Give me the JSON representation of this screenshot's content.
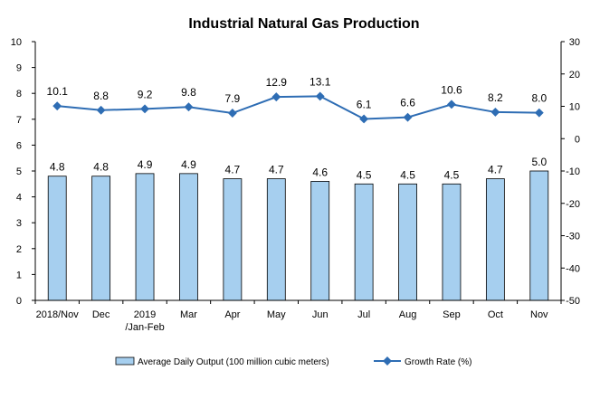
{
  "chart_data": {
    "type": "bar",
    "title": "Industrial Natural Gas Production",
    "categories": [
      "2018/Nov",
      "Dec",
      "2019\n/Jan-Feb",
      "Mar",
      "Apr",
      "May",
      "Jun",
      "Jul",
      "Aug",
      "Sep",
      "Oct",
      "Nov"
    ],
    "series": [
      {
        "name": "Average Daily Output (100 million cubic meters)",
        "type": "bar",
        "axis": "left",
        "color": "#a6cfef",
        "values": [
          4.8,
          4.8,
          4.9,
          4.9,
          4.7,
          4.7,
          4.6,
          4.5,
          4.5,
          4.5,
          4.7,
          5.0
        ],
        "labels": [
          "4.8",
          "4.8",
          "4.9",
          "4.9",
          "4.7",
          "4.7",
          "4.6",
          "4.5",
          "4.5",
          "4.5",
          "4.7",
          "5.0"
        ]
      },
      {
        "name": "Growth Rate (%)",
        "type": "line",
        "axis": "right",
        "color": "#2e6db4",
        "values": [
          10.1,
          8.8,
          9.2,
          9.8,
          7.9,
          12.9,
          13.1,
          6.1,
          6.6,
          10.6,
          8.2,
          8.0
        ],
        "labels": [
          "10.1",
          "8.8",
          "9.2",
          "9.8",
          "7.9",
          "12.9",
          "13.1",
          "6.1",
          "6.6",
          "10.6",
          "8.2",
          "8.0"
        ]
      }
    ],
    "y_left": {
      "min": 0,
      "max": 10,
      "ticks": [
        "0",
        "1",
        "2",
        "3",
        "4",
        "5",
        "6",
        "7",
        "8",
        "9",
        "10"
      ]
    },
    "y_right": {
      "min": -50,
      "max": 30,
      "ticks": [
        "-50",
        "-40",
        "-30",
        "-20",
        "-10",
        "0",
        "10",
        "20",
        "30"
      ]
    },
    "grid": false,
    "legend": "bottom"
  }
}
